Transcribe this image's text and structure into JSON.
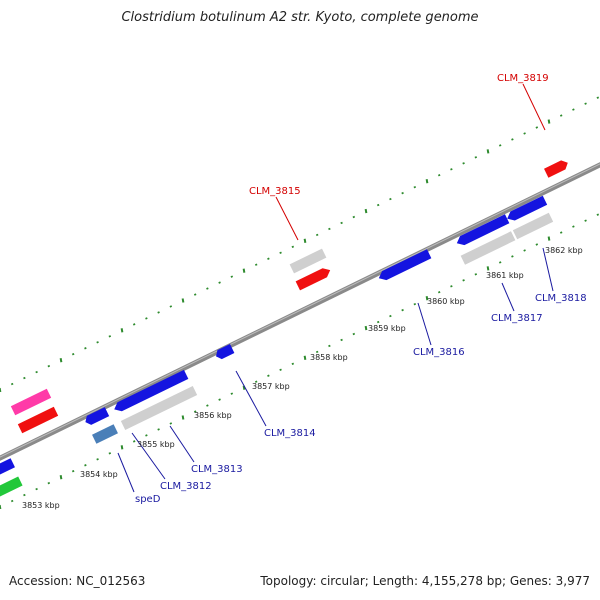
{
  "title": "Clostridium botulinum A2 str. Kyoto, complete genome",
  "footer": {
    "accession": "Accession: NC_012563",
    "summary": "Topology: circular; Length: 4,155,278 bp; Genes: 3,977"
  },
  "colors": {
    "backbone": "#8a8a8a",
    "tick": "#2e8b2e",
    "label_blue": "#1a1aa0",
    "label_red": "#d40000",
    "gene_blue": "#1414e0",
    "gene_gray": "#cfcfcf",
    "gene_red": "#f01010",
    "gene_magenta": "#ff3aa8",
    "gene_green": "#22c83a",
    "gene_steel": "#4a7fb8"
  },
  "scale": {
    "unit": "kbp",
    "marks": [
      {
        "label": "3853 kbp"
      },
      {
        "label": "3854 kbp"
      },
      {
        "label": "3855 kbp"
      },
      {
        "label": "3856 kbp"
      },
      {
        "label": "3857 kbp"
      },
      {
        "label": "3858 kbp"
      },
      {
        "label": "3859 kbp"
      },
      {
        "label": "3860 kbp"
      },
      {
        "label": "3861 kbp"
      },
      {
        "label": "3862 kbp"
      }
    ]
  },
  "genes": [
    {
      "name": "CLM_3812",
      "strand": "minus",
      "color": "gene_blue"
    },
    {
      "name": "speD",
      "strand": "minus",
      "color": "gene_steel"
    },
    {
      "name": "CLM_3813",
      "strand": "minus",
      "color": "gene_blue"
    },
    {
      "name": "CLM_3814",
      "strand": "minus",
      "color": "gene_blue"
    },
    {
      "name": "CLM_3815",
      "strand": "plus",
      "color": "gene_red"
    },
    {
      "name": "CLM_3816",
      "strand": "minus",
      "color": "gene_blue"
    },
    {
      "name": "CLM_3817",
      "strand": "minus",
      "color": "gene_blue"
    },
    {
      "name": "CLM_3818",
      "strand": "minus",
      "color": "gene_blue"
    },
    {
      "name": "CLM_3819",
      "strand": "plus",
      "color": "gene_red"
    }
  ]
}
